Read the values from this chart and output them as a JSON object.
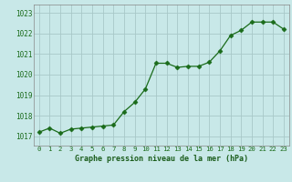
{
  "x": [
    0,
    1,
    2,
    3,
    4,
    5,
    6,
    7,
    8,
    9,
    10,
    11,
    12,
    13,
    14,
    15,
    16,
    17,
    18,
    19,
    20,
    21,
    22,
    23
  ],
  "y": [
    1017.2,
    1017.4,
    1017.15,
    1017.35,
    1017.4,
    1017.45,
    1017.5,
    1017.55,
    1018.2,
    1018.65,
    1019.3,
    1020.55,
    1020.55,
    1020.35,
    1020.4,
    1020.4,
    1020.6,
    1021.15,
    1021.9,
    1022.15,
    1022.55,
    1022.55,
    1022.55,
    1022.2
  ],
  "line_color": "#1a6b1a",
  "marker_color": "#1a6b1a",
  "bg_color": "#c8e8e8",
  "grid_color": "#a8c8c8",
  "xlabel": "Graphe pression niveau de la mer (hPa)",
  "xlabel_color": "#1a5c1a",
  "ylabel_ticks": [
    1017,
    1018,
    1019,
    1020,
    1021,
    1022,
    1023
  ],
  "xtick_labels": [
    "0",
    "1",
    "2",
    "3",
    "4",
    "5",
    "6",
    "7",
    "8",
    "9",
    "10",
    "11",
    "12",
    "13",
    "14",
    "15",
    "16",
    "17",
    "18",
    "19",
    "20",
    "21",
    "22",
    "23"
  ],
  "ylim": [
    1016.55,
    1023.4
  ],
  "xlim": [
    -0.5,
    23.5
  ]
}
